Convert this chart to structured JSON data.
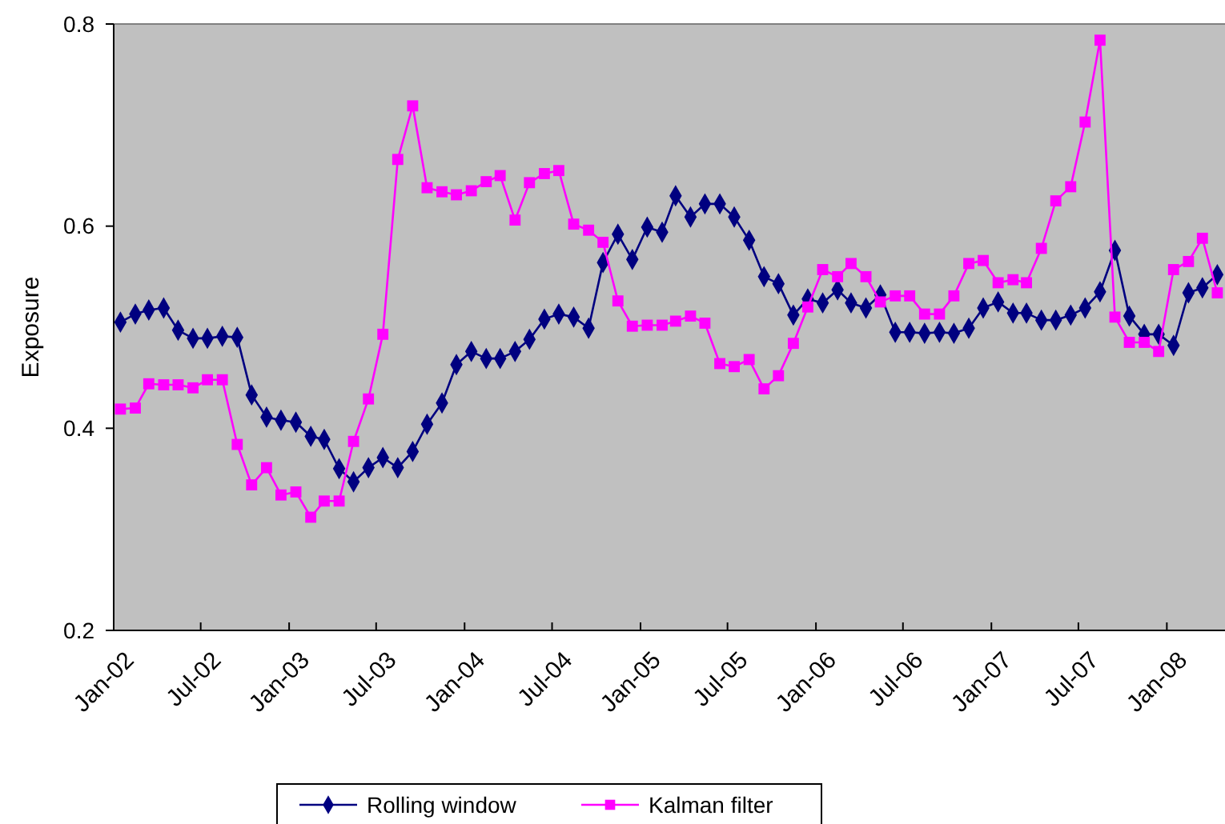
{
  "chart_data": {
    "type": "line",
    "ylabel": "Exposure",
    "x": [
      "2002-01-15",
      "2002-02-15",
      "2002-03-15",
      "2002-04-15",
      "2002-05-15",
      "2002-06-15",
      "2002-07-15",
      "2002-08-15",
      "2002-09-15",
      "2002-10-15",
      "2002-11-15",
      "2002-12-15",
      "2003-01-15",
      "2003-02-15",
      "2003-03-15",
      "2003-04-15",
      "2003-05-15",
      "2003-06-15",
      "2003-07-15",
      "2003-08-15",
      "2003-09-15",
      "2003-10-15",
      "2003-11-15",
      "2003-12-15",
      "2004-01-15",
      "2004-02-15",
      "2004-03-15",
      "2004-04-15",
      "2004-05-15",
      "2004-06-15",
      "2004-07-15",
      "2004-08-15",
      "2004-09-15",
      "2004-10-15",
      "2004-11-15",
      "2004-12-15",
      "2005-01-15",
      "2005-02-15",
      "2005-03-15",
      "2005-04-15",
      "2005-05-15",
      "2005-06-15",
      "2005-07-15",
      "2005-08-15",
      "2005-09-15",
      "2005-10-15",
      "2005-11-15",
      "2005-12-15",
      "2006-01-15",
      "2006-02-15",
      "2006-03-15",
      "2006-04-15",
      "2006-05-15",
      "2006-06-15",
      "2006-07-15",
      "2006-08-15",
      "2006-09-15",
      "2006-10-15",
      "2006-11-15",
      "2006-12-15",
      "2007-01-15",
      "2007-02-15",
      "2007-03-15",
      "2007-04-15",
      "2007-05-15",
      "2007-06-15",
      "2007-07-15",
      "2007-08-15",
      "2007-09-15",
      "2007-10-15",
      "2007-11-15",
      "2007-12-15",
      "2008-01-15",
      "2008-02-15",
      "2008-03-15",
      "2008-04-15"
    ],
    "series": [
      {
        "name": "Rolling window",
        "color": "#000080",
        "marker": "diamond",
        "values": [
          0.505,
          0.513,
          0.517,
          0.519,
          0.497,
          0.489,
          0.489,
          0.491,
          0.49,
          0.433,
          0.411,
          0.408,
          0.406,
          0.392,
          0.389,
          0.36,
          0.347,
          0.361,
          0.371,
          0.361,
          0.377,
          0.404,
          0.425,
          0.463,
          0.476,
          0.469,
          0.469,
          0.476,
          0.488,
          0.508,
          0.513,
          0.51,
          0.499,
          0.564,
          0.592,
          0.567,
          0.599,
          0.594,
          0.63,
          0.609,
          0.622,
          0.622,
          0.609,
          0.586,
          0.55,
          0.543,
          0.512,
          0.528,
          0.524,
          0.537,
          0.524,
          0.519,
          0.532,
          0.495,
          0.495,
          0.494,
          0.495,
          0.494,
          0.499,
          0.519,
          0.525,
          0.514,
          0.514,
          0.507,
          0.507,
          0.512,
          0.519,
          0.535,
          0.576,
          0.511,
          0.493,
          0.493,
          0.482,
          0.534,
          0.539,
          0.552
        ]
      },
      {
        "name": "Kalman filter",
        "color": "#ff00ff",
        "marker": "square",
        "values": [
          0.419,
          0.42,
          0.444,
          0.443,
          0.443,
          0.44,
          0.448,
          0.448,
          0.384,
          0.344,
          0.361,
          0.334,
          0.337,
          0.312,
          0.328,
          0.328,
          0.387,
          0.429,
          0.493,
          0.666,
          0.719,
          0.638,
          0.634,
          0.631,
          0.635,
          0.644,
          0.65,
          0.606,
          0.643,
          0.652,
          0.655,
          0.602,
          0.596,
          0.584,
          0.526,
          0.501,
          0.502,
          0.502,
          0.506,
          0.511,
          0.504,
          0.464,
          0.461,
          0.468,
          0.439,
          0.452,
          0.484,
          0.52,
          0.557,
          0.55,
          0.563,
          0.55,
          0.525,
          0.531,
          0.531,
          0.513,
          0.513,
          0.531,
          0.563,
          0.566,
          0.544,
          0.547,
          0.544,
          0.578,
          0.625,
          0.639,
          0.703,
          0.784,
          0.51,
          0.485,
          0.485,
          0.476,
          0.557,
          0.565,
          0.588,
          0.534
        ]
      }
    ],
    "xlim": [
      "2002-01-01",
      "2008-05-01"
    ],
    "xticks": [
      {
        "value": "2002-01-01",
        "label": "Jan-02"
      },
      {
        "value": "2002-07-01",
        "label": "Jul-02"
      },
      {
        "value": "2003-01-01",
        "label": "Jan-03"
      },
      {
        "value": "2003-07-01",
        "label": "Jul-03"
      },
      {
        "value": "2004-01-01",
        "label": "Jan-04"
      },
      {
        "value": "2004-07-01",
        "label": "Jul-04"
      },
      {
        "value": "2005-01-01",
        "label": "Jan-05"
      },
      {
        "value": "2005-07-01",
        "label": "Jul-05"
      },
      {
        "value": "2006-01-01",
        "label": "Jan-06"
      },
      {
        "value": "2006-07-01",
        "label": "Jul-06"
      },
      {
        "value": "2007-01-01",
        "label": "Jan-07"
      },
      {
        "value": "2007-07-01",
        "label": "Jul-07"
      },
      {
        "value": "2008-01-01",
        "label": "Jan-08"
      }
    ],
    "ylim": [
      0.2,
      0.8
    ],
    "yticks": [
      0.2,
      0.4,
      0.6,
      0.8
    ],
    "grid": false,
    "legend": "bottom",
    "line_style": "solid"
  }
}
